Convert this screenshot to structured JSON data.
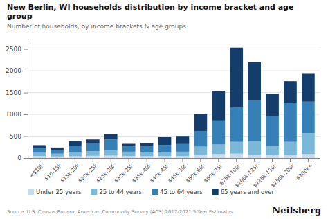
{
  "chart_data": {
    "type": "bar",
    "stacked": true,
    "title": "New Berlin, WI households distribution by income bracket and age group",
    "subtitle": "Number of households, by income brackets & age groups",
    "annotations": [
      "Source: U.S. Census Bureau, American Community Survey (ACS) 2017-2021 5-Year Estimates",
      "Neilsberg"
    ],
    "categories": [
      "<$10k",
      "$10-15k",
      "$15k-20k",
      "$20k-25k",
      "$25k-30k",
      "$30k-35k",
      "$35k-40k",
      "$40k-45k",
      "$45k-50k",
      "$50k-60k",
      "$60k-75k",
      "$75k-100k",
      "$100k-125k",
      "$125k-150k",
      "$150k-200k",
      "$200k+"
    ],
    "series": [
      {
        "name": "Under 25 years",
        "color": "#c6dcee",
        "values": [
          45,
          35,
          40,
          50,
          55,
          45,
          45,
          45,
          45,
          80,
          90,
          100,
          80,
          65,
          70,
          90
        ]
      },
      {
        "name": "25 to 44 years",
        "color": "#7ab8d9",
        "values": [
          75,
          65,
          95,
          105,
          120,
          100,
          95,
          95,
          100,
          180,
          220,
          270,
          300,
          220,
          300,
          480
        ]
      },
      {
        "name": "45 to 64 years",
        "color": "#3680b8",
        "values": [
          110,
          85,
          150,
          180,
          250,
          125,
          135,
          160,
          175,
          360,
          550,
          800,
          950,
          680,
          900,
          720
        ]
      },
      {
        "name": "65 years and over",
        "color": "#143d6b",
        "values": [
          65,
          55,
          100,
          90,
          120,
          55,
          65,
          185,
          185,
          385,
          680,
          1360,
          870,
          510,
          490,
          640
        ]
      }
    ],
    "ylim": [
      0,
      2700
    ],
    "yticks": [
      0,
      500,
      1000,
      1500,
      2000,
      2500
    ],
    "grid": true,
    "legend": "bottom"
  }
}
